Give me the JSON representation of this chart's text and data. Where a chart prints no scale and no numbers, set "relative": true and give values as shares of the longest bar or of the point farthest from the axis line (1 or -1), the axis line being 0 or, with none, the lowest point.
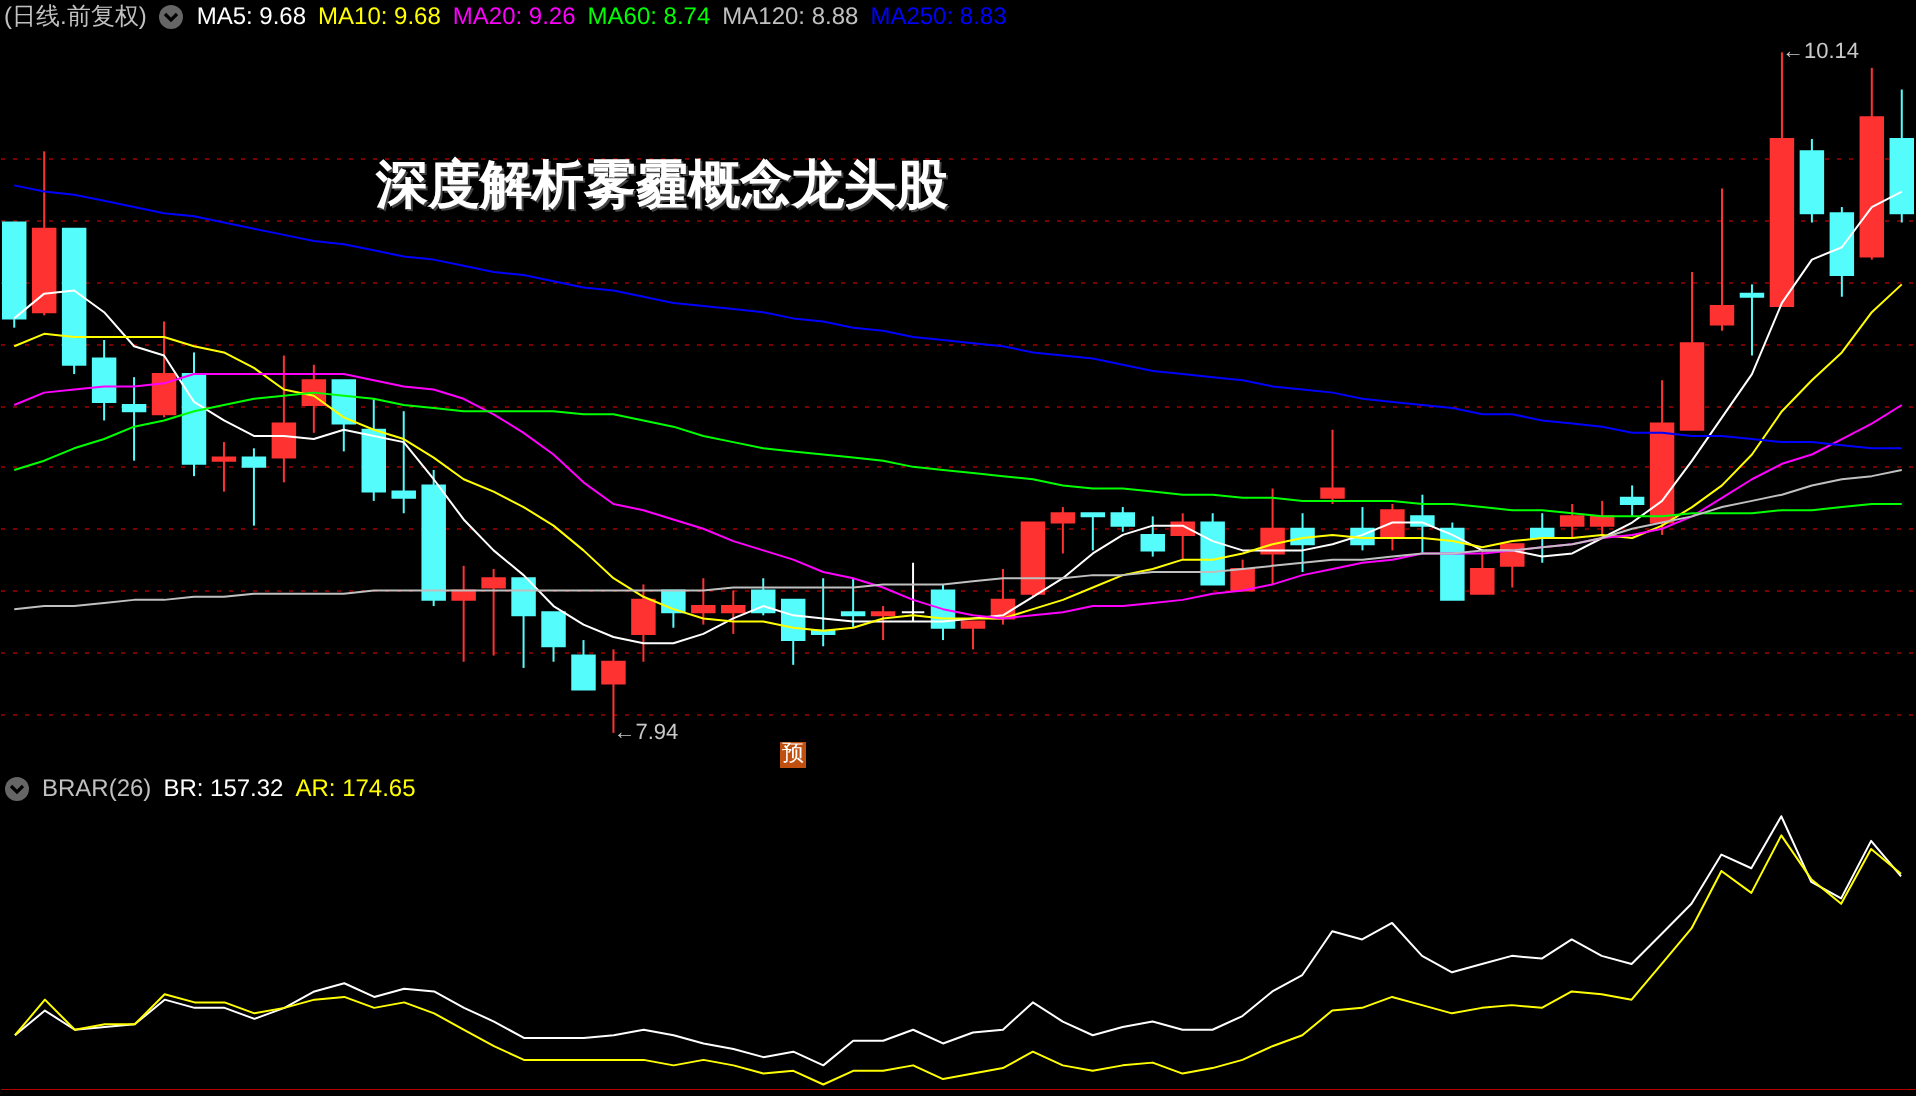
{
  "chart_data": [
    {
      "type": "candlestick",
      "title": "深度解析雾霾概念龙头股",
      "subtitle": "(日线.前复权)",
      "categories": [
        null,
        null,
        null,
        null,
        null,
        null,
        null,
        null,
        null,
        null,
        null,
        null,
        null,
        null,
        null,
        null,
        null,
        null,
        null,
        null,
        null,
        null,
        null,
        null,
        null,
        null,
        null,
        null,
        null,
        null,
        null,
        null,
        null,
        null,
        null,
        null,
        null,
        null,
        null,
        null,
        null,
        null,
        null,
        null,
        null,
        null,
        null,
        null,
        null,
        null,
        null,
        null,
        null,
        null,
        null,
        null,
        null,
        null,
        null,
        null,
        null,
        null,
        null,
        null
      ],
      "ohlc": [
        [
          9.59,
          9.59,
          9.25,
          9.28
        ],
        [
          9.3,
          9.82,
          9.29,
          9.57
        ],
        [
          9.57,
          9.57,
          9.1,
          9.13
        ],
        [
          9.15,
          9.21,
          8.95,
          9.01
        ],
        [
          9.0,
          9.09,
          8.82,
          8.98
        ],
        [
          8.97,
          9.27,
          8.96,
          9.1
        ],
        [
          9.1,
          9.17,
          8.77,
          8.81
        ],
        [
          8.82,
          8.88,
          8.72,
          8.83
        ],
        [
          8.83,
          8.86,
          8.61,
          8.8
        ],
        [
          8.83,
          9.16,
          8.75,
          8.94
        ],
        [
          9.0,
          9.13,
          8.91,
          9.08
        ],
        [
          9.08,
          9.08,
          8.85,
          8.94
        ],
        [
          8.92,
          9.02,
          8.69,
          8.72
        ],
        [
          8.72,
          8.98,
          8.65,
          8.7
        ],
        [
          8.74,
          8.79,
          8.35,
          8.37
        ],
        [
          8.37,
          8.48,
          8.17,
          8.4
        ],
        [
          8.41,
          8.47,
          8.19,
          8.44
        ],
        [
          8.44,
          8.44,
          8.15,
          8.32
        ],
        [
          8.33,
          8.33,
          8.17,
          8.22
        ],
        [
          8.19,
          8.24,
          8.08,
          8.08
        ],
        [
          8.1,
          8.21,
          7.94,
          8.17
        ],
        [
          8.26,
          8.42,
          8.17,
          8.37
        ],
        [
          8.4,
          8.4,
          8.28,
          8.33
        ],
        [
          8.33,
          8.44,
          8.29,
          8.35
        ],
        [
          8.33,
          8.4,
          8.26,
          8.35
        ],
        [
          8.4,
          8.44,
          8.32,
          8.33
        ],
        [
          8.37,
          8.37,
          8.16,
          8.24
        ],
        [
          8.27,
          8.44,
          8.22,
          8.26
        ],
        [
          8.33,
          8.44,
          8.28,
          8.32
        ],
        [
          8.32,
          8.35,
          8.24,
          8.33
        ],
        [
          8.33,
          8.49,
          8.3,
          8.33
        ],
        [
          8.4,
          8.42,
          8.24,
          8.28
        ],
        [
          8.28,
          8.3,
          8.21,
          8.3
        ],
        [
          8.31,
          8.47,
          8.29,
          8.37
        ],
        [
          8.39,
          8.62,
          8.38,
          8.62
        ],
        [
          8.62,
          8.67,
          8.52,
          8.65
        ],
        [
          8.65,
          8.65,
          8.53,
          8.64
        ],
        [
          8.65,
          8.67,
          8.59,
          8.61
        ],
        [
          8.58,
          8.64,
          8.51,
          8.53
        ],
        [
          8.58,
          8.65,
          8.5,
          8.62
        ],
        [
          8.62,
          8.65,
          8.42,
          8.42
        ],
        [
          8.4,
          8.5,
          8.4,
          8.47
        ],
        [
          8.52,
          8.73,
          8.42,
          8.6
        ],
        [
          8.6,
          8.65,
          8.46,
          8.55
        ],
        [
          8.7,
          8.92,
          8.68,
          8.73
        ],
        [
          8.6,
          8.67,
          8.53,
          8.55
        ],
        [
          8.57,
          8.68,
          8.53,
          8.66
        ],
        [
          8.64,
          8.71,
          8.52,
          8.61
        ],
        [
          8.6,
          8.62,
          8.37,
          8.37
        ],
        [
          8.39,
          8.53,
          8.39,
          8.47
        ],
        [
          8.48,
          8.55,
          8.41,
          8.55
        ],
        [
          8.6,
          8.65,
          8.49,
          8.57
        ],
        [
          8.61,
          8.68,
          8.57,
          8.64
        ],
        [
          8.61,
          8.69,
          8.57,
          8.64
        ],
        [
          8.7,
          8.74,
          8.64,
          8.68
        ],
        [
          8.62,
          9.08,
          8.58,
          8.94
        ],
        [
          8.92,
          9.43,
          8.92,
          9.2
        ],
        [
          9.26,
          9.7,
          9.24,
          9.32
        ],
        [
          9.36,
          9.39,
          9.16,
          9.35
        ],
        [
          9.32,
          10.14,
          9.32,
          9.86
        ],
        [
          9.82,
          9.86,
          9.59,
          9.62
        ],
        [
          9.62,
          9.64,
          9.35,
          9.42
        ],
        [
          9.48,
          10.09,
          9.47,
          9.93
        ],
        [
          9.86,
          10.02,
          9.59,
          9.62
        ]
      ],
      "colors": [
        "#54fcfc",
        "#ff3232",
        "#54fcfc",
        "#54fcfc",
        "#54fcfc",
        "#ff3232",
        "#54fcfc",
        "#ff3232",
        "#54fcfc",
        "#ff3232",
        "#ff3232",
        "#54fcfc",
        "#54fcfc",
        "#54fcfc",
        "#54fcfc",
        "#ff3232",
        "#ff3232",
        "#54fcfc",
        "#54fcfc",
        "#54fcfc",
        "#ff3232",
        "#ff3232",
        "#54fcfc",
        "#ff3232",
        "#ff3232",
        "#54fcfc",
        "#54fcfc",
        "#54fcfc",
        "#54fcfc",
        "#ff3232",
        "#ffffff",
        "#54fcfc",
        "#ff3232",
        "#ff3232",
        "#ff3232",
        "#ff3232",
        "#54fcfc",
        "#54fcfc",
        "#54fcfc",
        "#ff3232",
        "#54fcfc",
        "#ff3232",
        "#ff3232",
        "#54fcfc",
        "#ff3232",
        "#54fcfc",
        "#ff3232",
        "#54fcfc",
        "#54fcfc",
        "#ff3232",
        "#ff3232",
        "#54fcfc",
        "#ff3232",
        "#ff3232",
        "#54fcfc",
        "#ff3232",
        "#ff3232",
        "#ff3232",
        "#54fcfc",
        "#ff3232",
        "#54fcfc",
        "#54fcfc",
        "#ff3232",
        "#54fcfc"
      ],
      "series": [
        {
          "name": "MA5: 9.68",
          "type": "line",
          "color": "#ffffff",
          "values": [
            9.28,
            9.36,
            9.37,
            9.3,
            9.19,
            9.16,
            9.01,
            8.95,
            8.9,
            8.9,
            8.89,
            8.92,
            8.9,
            8.88,
            8.76,
            8.63,
            8.53,
            8.45,
            8.35,
            8.29,
            8.25,
            8.23,
            8.23,
            8.26,
            8.31,
            8.35,
            8.32,
            8.31,
            8.3,
            8.3,
            8.3,
            8.3,
            8.31,
            8.32,
            8.38,
            8.44,
            8.52,
            8.58,
            8.61,
            8.61,
            8.56,
            8.53,
            8.53,
            8.53,
            8.55,
            8.58,
            8.62,
            8.62,
            8.58,
            8.53,
            8.53,
            8.51,
            8.52,
            8.57,
            8.62,
            8.69,
            8.82,
            8.96,
            9.1,
            9.33,
            9.47,
            9.51,
            9.64,
            9.69
          ]
        },
        {
          "name": "MA10: 9.68",
          "type": "line",
          "color": "#ffff00",
          "values": [
            9.19,
            9.23,
            9.22,
            9.22,
            9.22,
            9.22,
            9.19,
            9.17,
            9.12,
            9.05,
            9.03,
            8.96,
            8.92,
            8.89,
            8.83,
            8.76,
            8.72,
            8.67,
            8.61,
            8.53,
            8.44,
            8.38,
            8.34,
            8.31,
            8.3,
            8.3,
            8.28,
            8.27,
            8.28,
            8.31,
            8.32,
            8.31,
            8.31,
            8.31,
            8.34,
            8.37,
            8.41,
            8.45,
            8.47,
            8.5,
            8.5,
            8.52,
            8.55,
            8.57,
            8.58,
            8.57,
            8.57,
            8.57,
            8.56,
            8.54,
            8.56,
            8.57,
            8.57,
            8.58,
            8.57,
            8.61,
            8.67,
            8.74,
            8.84,
            8.98,
            9.08,
            9.17,
            9.3,
            9.39
          ]
        },
        {
          "name": "MA20: 9.26",
          "type": "line",
          "color": "#ff00ff",
          "values": [
            9.0,
            9.04,
            9.05,
            9.06,
            9.06,
            9.07,
            9.1,
            9.1,
            9.1,
            9.1,
            9.1,
            9.1,
            9.08,
            9.06,
            9.05,
            9.02,
            8.97,
            8.91,
            8.84,
            8.75,
            8.68,
            8.66,
            8.63,
            8.6,
            8.56,
            8.53,
            8.5,
            8.46,
            8.44,
            8.41,
            8.37,
            8.34,
            8.32,
            8.31,
            8.32,
            8.33,
            8.35,
            8.35,
            8.36,
            8.37,
            8.39,
            8.4,
            8.42,
            8.45,
            8.47,
            8.49,
            8.5,
            8.52,
            8.52,
            8.52,
            8.53,
            8.54,
            8.55,
            8.57,
            8.58,
            8.6,
            8.64,
            8.7,
            8.76,
            8.81,
            8.84,
            8.89,
            8.94,
            9.0
          ]
        },
        {
          "name": "MA60: 8.74",
          "type": "line",
          "color": "#00ff00",
          "values": [
            8.79,
            8.82,
            8.86,
            8.89,
            8.93,
            8.95,
            8.98,
            9.0,
            9.02,
            9.03,
            9.04,
            9.03,
            9.02,
            9.0,
            8.99,
            8.98,
            8.98,
            8.98,
            8.98,
            8.97,
            8.97,
            8.95,
            8.93,
            8.9,
            8.88,
            8.86,
            8.85,
            8.84,
            8.83,
            8.82,
            8.8,
            8.79,
            8.78,
            8.77,
            8.76,
            8.74,
            8.73,
            8.73,
            8.72,
            8.71,
            8.71,
            8.7,
            8.7,
            8.69,
            8.69,
            8.69,
            8.69,
            8.68,
            8.68,
            8.67,
            8.66,
            8.66,
            8.65,
            8.64,
            8.64,
            8.64,
            8.65,
            8.65,
            8.65,
            8.66,
            8.66,
            8.67,
            8.68,
            8.68
          ]
        },
        {
          "name": "MA120: 8.88",
          "type": "line",
          "color": "#c0c0c0",
          "values": [
            8.34,
            8.35,
            8.35,
            8.36,
            8.37,
            8.37,
            8.38,
            8.38,
            8.39,
            8.39,
            8.39,
            8.39,
            8.4,
            8.4,
            8.4,
            8.4,
            8.4,
            8.4,
            8.4,
            8.4,
            8.4,
            8.4,
            8.4,
            8.4,
            8.41,
            8.41,
            8.41,
            8.41,
            8.41,
            8.42,
            8.42,
            8.42,
            8.43,
            8.44,
            8.44,
            8.44,
            8.45,
            8.45,
            8.46,
            8.46,
            8.46,
            8.47,
            8.48,
            8.49,
            8.5,
            8.5,
            8.51,
            8.52,
            8.52,
            8.53,
            8.53,
            8.54,
            8.55,
            8.57,
            8.6,
            8.62,
            8.64,
            8.67,
            8.69,
            8.71,
            8.74,
            8.76,
            8.77,
            8.79
          ]
        },
        {
          "name": "MA250: 8.83",
          "type": "line",
          "color": "#0000ff",
          "values": [
            9.71,
            9.69,
            9.68,
            9.66,
            9.64,
            9.62,
            9.61,
            9.59,
            9.57,
            9.55,
            9.53,
            9.52,
            9.5,
            9.48,
            9.47,
            9.45,
            9.43,
            9.42,
            9.4,
            9.38,
            9.37,
            9.35,
            9.33,
            9.32,
            9.31,
            9.3,
            9.28,
            9.27,
            9.25,
            9.24,
            9.22,
            9.21,
            9.2,
            9.19,
            9.17,
            9.16,
            9.15,
            9.13,
            9.11,
            9.1,
            9.09,
            9.08,
            9.06,
            9.05,
            9.04,
            9.02,
            9.01,
            9.0,
            8.99,
            8.97,
            8.97,
            8.95,
            8.94,
            8.93,
            8.91,
            8.91,
            8.9,
            8.9,
            8.89,
            8.88,
            8.88,
            8.87,
            8.86,
            8.86
          ]
        }
      ],
      "ylim": [
        7.82,
        10.18
      ],
      "yticks": [
        {
          "value": 8.0,
          "label": null
        },
        {
          "value": 8.2,
          "label": null
        },
        {
          "value": 8.4,
          "label": null
        },
        {
          "value": 8.6,
          "label": null
        },
        {
          "value": 8.8,
          "label": null
        },
        {
          "value": 9.0,
          "label": null
        },
        {
          "value": 9.2,
          "label": null
        },
        {
          "value": 9.4,
          "label": null
        },
        {
          "value": 9.6,
          "label": null
        },
        {
          "value": 9.8,
          "label": null
        }
      ],
      "grid": "y",
      "legend": "top left",
      "annotations": [
        "←10.14",
        "←7.94",
        "预"
      ]
    },
    {
      "type": "line",
      "title": "BRAR(26)",
      "relative": true,
      "legend": "top left",
      "categories": [
        null,
        null,
        null,
        null,
        null,
        null,
        null,
        null,
        null,
        null,
        null,
        null,
        null,
        null,
        null,
        null,
        null,
        null,
        null,
        null,
        null,
        null,
        null,
        null,
        null,
        null,
        null,
        null,
        null,
        null,
        null,
        null,
        null,
        null,
        null,
        null,
        null,
        null,
        null,
        null,
        null,
        null,
        null,
        null,
        null,
        null,
        null,
        null,
        null,
        null,
        null,
        null,
        null,
        null,
        null,
        null,
        null,
        null,
        null,
        null,
        null,
        null,
        null,
        null
      ],
      "series": [
        {
          "name": "BR: 157.32",
          "color": "#ffffff",
          "values": [
            0.2,
            0.29,
            0.22,
            0.23,
            0.24,
            0.33,
            0.3,
            0.3,
            0.26,
            0.3,
            0.36,
            0.39,
            0.34,
            0.37,
            0.36,
            0.3,
            0.25,
            0.19,
            0.19,
            0.19,
            0.2,
            0.22,
            0.2,
            0.17,
            0.15,
            0.12,
            0.14,
            0.09,
            0.18,
            0.18,
            0.22,
            0.17,
            0.21,
            0.22,
            0.32,
            0.25,
            0.2,
            0.23,
            0.25,
            0.22,
            0.22,
            0.27,
            0.36,
            0.42,
            0.58,
            0.55,
            0.61,
            0.49,
            0.43,
            0.46,
            0.49,
            0.48,
            0.55,
            0.49,
            0.46,
            0.57,
            0.68,
            0.86,
            0.81,
            1,
            0.76,
            0.7,
            0.91,
            0.78
          ]
        },
        {
          "name": "AR: 174.65",
          "color": "#ffff00",
          "values": [
            0.2,
            0.33,
            0.22,
            0.24,
            0.24,
            0.35,
            0.32,
            0.32,
            0.28,
            0.3,
            0.33,
            0.34,
            0.3,
            0.32,
            0.28,
            0.22,
            0.16,
            0.11,
            0.11,
            0.11,
            0.11,
            0.11,
            0.09,
            0.11,
            0.09,
            0.06,
            0.07,
            0.02,
            0.07,
            0.07,
            0.09,
            0.04,
            0.06,
            0.08,
            0.14,
            0.09,
            0.07,
            0.09,
            0.1,
            0.06,
            0.08,
            0.11,
            0.16,
            0.2,
            0.29,
            0.3,
            0.34,
            0.31,
            0.28,
            0.3,
            0.31,
            0.3,
            0.36,
            0.35,
            0.33,
            0.46,
            0.59,
            0.8,
            0.72,
            0.93,
            0.77,
            0.68,
            0.88,
            0.79
          ]
        }
      ]
    }
  ]
}
